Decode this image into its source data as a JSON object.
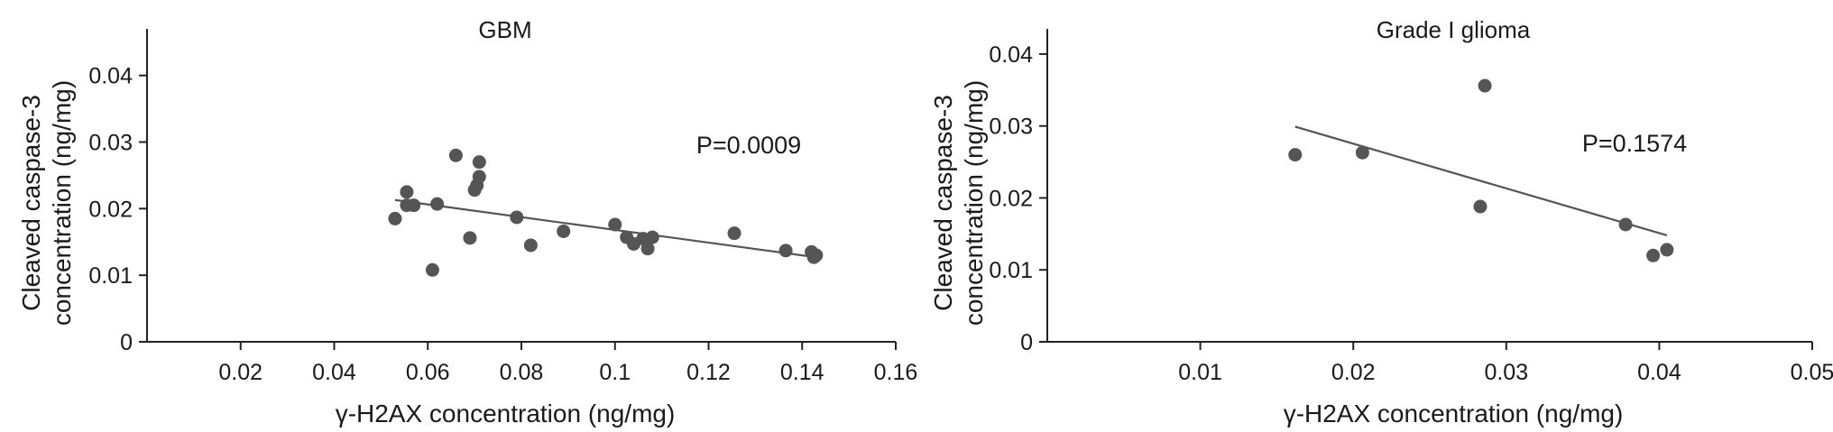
{
  "chart_data": [
    {
      "type": "scatter",
      "title": "GBM",
      "xlabel": "γ-H2AX concentration (ng/mg)",
      "ylabel_lines": [
        "Cleaved caspase-3",
        "concentration (ng/mg)"
      ],
      "xlim": [
        0,
        0.16
      ],
      "ylim": [
        0,
        0.047
      ],
      "x_ticks": [
        0.02,
        0.04,
        0.06,
        0.08,
        0.1,
        0.12,
        0.14,
        0.16
      ],
      "x_tick_labels": [
        "0.02",
        "0.04",
        "0.06",
        "0.08",
        "0.1",
        "0.12",
        "0.14",
        "0.16"
      ],
      "y_ticks": [
        0,
        0.01,
        0.02,
        0.03,
        0.04
      ],
      "y_tick_labels": [
        "0",
        "0.01",
        "0.02",
        "0.03",
        "0.04"
      ],
      "annotation": "P=0.0009",
      "grid": false,
      "points": [
        {
          "x": 0.053,
          "y": 0.0185
        },
        {
          "x": 0.0555,
          "y": 0.0225
        },
        {
          "x": 0.0555,
          "y": 0.0205
        },
        {
          "x": 0.057,
          "y": 0.0205
        },
        {
          "x": 0.061,
          "y": 0.0108
        },
        {
          "x": 0.062,
          "y": 0.0207
        },
        {
          "x": 0.066,
          "y": 0.028
        },
        {
          "x": 0.069,
          "y": 0.0156
        },
        {
          "x": 0.07,
          "y": 0.0228
        },
        {
          "x": 0.0705,
          "y": 0.0235
        },
        {
          "x": 0.071,
          "y": 0.0248
        },
        {
          "x": 0.071,
          "y": 0.027
        },
        {
          "x": 0.079,
          "y": 0.0187
        },
        {
          "x": 0.082,
          "y": 0.0145
        },
        {
          "x": 0.089,
          "y": 0.0166
        },
        {
          "x": 0.1,
          "y": 0.0176
        },
        {
          "x": 0.1025,
          "y": 0.0157
        },
        {
          "x": 0.104,
          "y": 0.0147
        },
        {
          "x": 0.106,
          "y": 0.0155
        },
        {
          "x": 0.107,
          "y": 0.014
        },
        {
          "x": 0.108,
          "y": 0.0157
        },
        {
          "x": 0.1255,
          "y": 0.0163
        },
        {
          "x": 0.1365,
          "y": 0.0137
        },
        {
          "x": 0.142,
          "y": 0.0135
        },
        {
          "x": 0.1425,
          "y": 0.0127
        },
        {
          "x": 0.143,
          "y": 0.013
        }
      ],
      "trendline": [
        {
          "x": 0.053,
          "y": 0.0213
        },
        {
          "x": 0.143,
          "y": 0.0127
        }
      ]
    },
    {
      "type": "scatter",
      "title": "Grade I glioma",
      "xlabel": "γ-H2AX concentration (ng/mg)",
      "ylabel_lines": [
        "Cleaved caspase-3",
        "concentration (ng/mg)"
      ],
      "xlim": [
        0,
        0.05
      ],
      "ylim": [
        0,
        0.0435
      ],
      "x_ticks": [
        0.01,
        0.02,
        0.03,
        0.04,
        0.05
      ],
      "x_tick_labels": [
        "0.01",
        "0.02",
        "0.03",
        "0.04",
        "0.05"
      ],
      "y_ticks": [
        0,
        0.01,
        0.02,
        0.03,
        0.04
      ],
      "y_tick_labels": [
        "0",
        "0.01",
        "0.02",
        "0.03",
        "0.04"
      ],
      "annotation": "P=0.1574",
      "grid": false,
      "points": [
        {
          "x": 0.0162,
          "y": 0.026
        },
        {
          "x": 0.0206,
          "y": 0.0263
        },
        {
          "x": 0.0283,
          "y": 0.0188
        },
        {
          "x": 0.0286,
          "y": 0.0356
        },
        {
          "x": 0.0378,
          "y": 0.0163
        },
        {
          "x": 0.0396,
          "y": 0.012
        },
        {
          "x": 0.0405,
          "y": 0.0128
        }
      ],
      "trendline": [
        {
          "x": 0.0162,
          "y": 0.0299
        },
        {
          "x": 0.0405,
          "y": 0.0148
        }
      ]
    }
  ]
}
